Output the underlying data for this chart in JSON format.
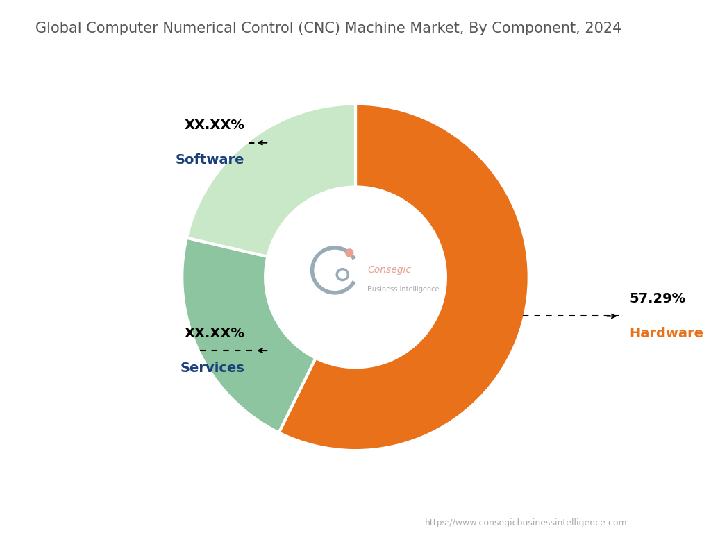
{
  "title": "Global Computer Numerical Control (CNC) Machine Market, By Component, 2024",
  "segments": [
    {
      "label": "Hardware",
      "value": 57.29,
      "color": "#E8711A",
      "display_pct": "57.29%",
      "pct_color": "#000000",
      "label_color": "#E8711A"
    },
    {
      "label": "Services",
      "value": 21.36,
      "color": "#8DC5A0",
      "display_pct": "XX.XX%",
      "pct_color": "#000000",
      "label_color": "#1B3F7A"
    },
    {
      "label": "Software",
      "value": 21.35,
      "color": "#C8E8C8",
      "display_pct": "XX.XX%",
      "pct_color": "#000000",
      "label_color": "#1B3F7A"
    }
  ],
  "background_color": "#FFFFFF",
  "title_color": "#555555",
  "title_fontsize": 15,
  "watermark_text": "https://www.consegicbusinessintelligence.com",
  "center_consegic_color": "#E8A090",
  "center_b_color": "#9AABB8",
  "center_text_color": "#BBBBBB"
}
